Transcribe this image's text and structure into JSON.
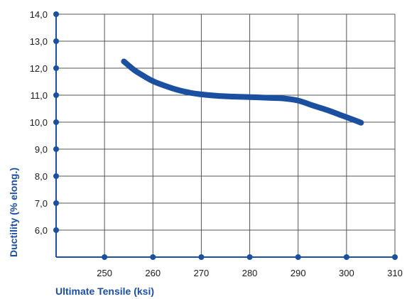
{
  "colors": {
    "accent": "#1b4fa0",
    "grid": "#555555",
    "text": "#1a1a1a"
  },
  "chart_data": {
    "type": "line",
    "title": "",
    "xlabel": "Ultimate Tensile (ksi)",
    "ylabel": "Ductility (% elong.)",
    "xlim": [
      240,
      310
    ],
    "ylim": [
      5,
      14
    ],
    "grid": true,
    "legend": "none",
    "x_ticks": [
      250,
      260,
      270,
      280,
      290,
      300,
      310
    ],
    "x_tick_labels": [
      "250",
      "260",
      "270",
      "280",
      "290",
      "300",
      "310"
    ],
    "y_ticks": [
      6,
      7,
      8,
      9,
      10,
      11,
      12,
      13,
      14
    ],
    "y_tick_labels": [
      "6,0",
      "7,0",
      "8,0",
      "9,0",
      "10,0",
      "11,0",
      "12,0",
      "13,0",
      "14,0"
    ],
    "series": [
      {
        "x": [
          254,
          256,
          258,
          260,
          262,
          265,
          268,
          270,
          273,
          276,
          280,
          284,
          287,
          290,
          293,
          296,
          299,
          302,
          303
        ],
        "y": [
          12.25,
          11.95,
          11.72,
          11.52,
          11.38,
          11.2,
          11.08,
          11.03,
          10.98,
          10.95,
          10.93,
          10.9,
          10.88,
          10.8,
          10.62,
          10.45,
          10.25,
          10.05,
          9.98
        ]
      }
    ]
  }
}
